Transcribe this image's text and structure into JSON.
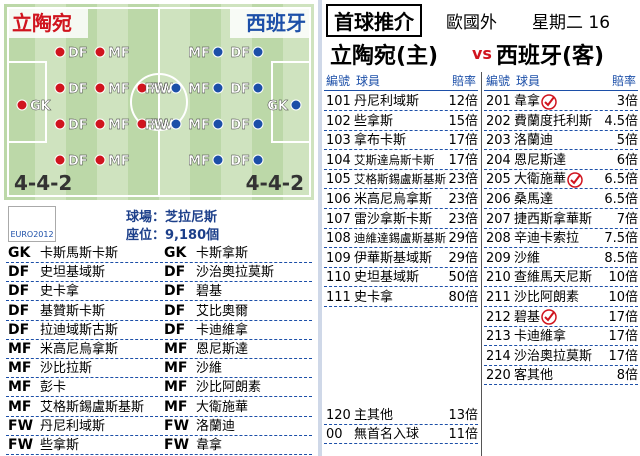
{
  "pitch": {
    "home": {
      "name": "立陶宛",
      "formation": "4-4-2",
      "positions": [
        "GK",
        "DF",
        "DF",
        "DF",
        "DF",
        "MF",
        "MF",
        "MF",
        "MF",
        "FW",
        "FW"
      ]
    },
    "away": {
      "name": "西班牙",
      "formation": "4-4-2",
      "positions": [
        "GK",
        "DF",
        "DF",
        "DF",
        "DF",
        "MF",
        "MF",
        "MF",
        "MF",
        "FW",
        "FW"
      ]
    }
  },
  "logo": "EURO2012",
  "venue": {
    "stadium": "球場：芝拉尼斯",
    "seats": "座位：9,180個"
  },
  "lineup": {
    "rows": [
      [
        "GK",
        "卡斯馬斯卡斯",
        "GK",
        "卡斯拿斯"
      ],
      [
        "DF",
        "史坦基域斯",
        "DF",
        "沙治奧拉莫斯"
      ],
      [
        "DF",
        "史卡拿",
        "DF",
        "碧基"
      ],
      [
        "DF",
        "基贊斯卡斯",
        "DF",
        "艾比奧爾"
      ],
      [
        "DF",
        "拉迪域斯古斯",
        "DF",
        "卡迪維拿"
      ],
      [
        "MF",
        "米高尼烏拿斯",
        "MF",
        "恩尼斯達"
      ],
      [
        "MF",
        "沙比拉斯",
        "MF",
        "沙維"
      ],
      [
        "MF",
        "彭卡",
        "MF",
        "沙比阿朗素"
      ],
      [
        "MF",
        "艾格斯錫盧斯基斯",
        "MF",
        "大衛施華"
      ],
      [
        "FW",
        "丹尼利域斯",
        "FW",
        "洛蘭迪"
      ],
      [
        "FW",
        "些拿斯",
        "FW",
        "韋拿"
      ]
    ]
  },
  "odds": {
    "title": "首球推介",
    "league": "歐國外",
    "date": "星期二 16",
    "home_team": "立陶宛(主)",
    "vs": "vs",
    "away_team": "西班牙(客)",
    "headers": [
      "編號",
      "球員",
      "賠率"
    ],
    "home": [
      {
        "no": "101",
        "player": "丹尼利域斯",
        "odds": "12倍"
      },
      {
        "no": "102",
        "player": "些拿斯",
        "odds": "15倍"
      },
      {
        "no": "103",
        "player": "拿布卡斯",
        "odds": "17倍"
      },
      {
        "no": "104",
        "player": "艾斯達烏斯卡斯",
        "odds": "17倍"
      },
      {
        "no": "105",
        "player": "艾格斯錫盧斯基斯",
        "odds": "23倍"
      },
      {
        "no": "106",
        "player": "米高尼烏拿斯",
        "odds": "23倍"
      },
      {
        "no": "107",
        "player": "雷沙拿斯卡斯",
        "odds": "23倍"
      },
      {
        "no": "108",
        "player": "迪維達錫盧斯基斯",
        "odds": "29倍"
      },
      {
        "no": "109",
        "player": "伊華斯基域斯",
        "odds": "29倍"
      },
      {
        "no": "110",
        "player": "史坦基域斯",
        "odds": "50倍"
      },
      {
        "no": "111",
        "player": "史卡拿",
        "odds": "80倍"
      },
      {
        "no": "120",
        "player": "主其他",
        "odds": "13倍"
      },
      {
        "no": "00",
        "player": "無首名入球",
        "odds": "11倍"
      }
    ],
    "away": [
      {
        "no": "201",
        "player": "韋拿",
        "odds": "3倍",
        "picked": true
      },
      {
        "no": "202",
        "player": "費蘭度托利斯",
        "odds": "4.5倍"
      },
      {
        "no": "203",
        "player": "洛蘭迪",
        "odds": "5倍"
      },
      {
        "no": "204",
        "player": "恩尼斯達",
        "odds": "6倍"
      },
      {
        "no": "205",
        "player": "大衛施華",
        "odds": "6.5倍",
        "picked": true
      },
      {
        "no": "206",
        "player": "桑馬達",
        "odds": "6.5倍"
      },
      {
        "no": "207",
        "player": "捷西斯拿華斯",
        "odds": "7倍"
      },
      {
        "no": "208",
        "player": "辛迪卡索拉",
        "odds": "7.5倍"
      },
      {
        "no": "209",
        "player": "沙維",
        "odds": "8.5倍"
      },
      {
        "no": "210",
        "player": "查維馬天尼斯",
        "odds": "10倍"
      },
      {
        "no": "211",
        "player": "沙比阿朗素",
        "odds": "10倍"
      },
      {
        "no": "212",
        "player": "碧基",
        "odds": "17倍",
        "picked": true
      },
      {
        "no": "213",
        "player": "卡迪維拿",
        "odds": "17倍"
      },
      {
        "no": "214",
        "player": "沙治奧拉莫斯",
        "odds": "17倍"
      },
      {
        "no": "220",
        "player": "客其他",
        "odds": "8倍"
      }
    ]
  }
}
